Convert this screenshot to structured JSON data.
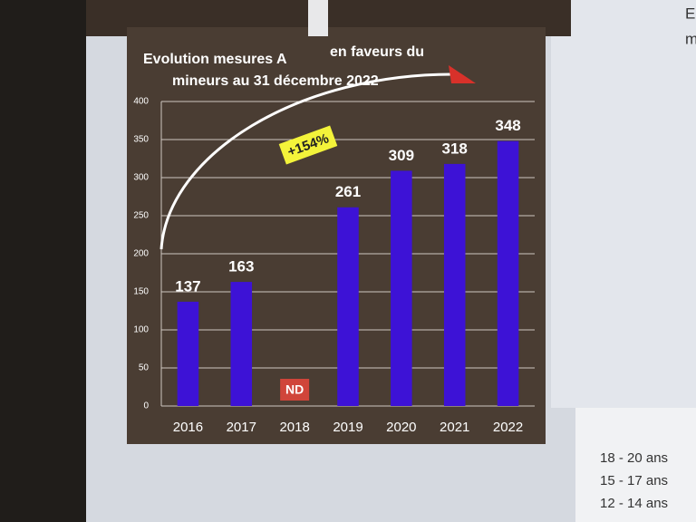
{
  "chart_data": {
    "type": "bar",
    "title": [
      "Evolution mesures A",
      "en faveurs du",
      "mineurs au 31 décembre 2022"
    ],
    "categories": [
      "2016",
      "2017",
      "2018",
      "2019",
      "2020",
      "2021",
      "2022"
    ],
    "values": [
      137,
      163,
      null,
      261,
      309,
      318,
      348
    ],
    "value_labels": [
      "137",
      "163",
      "ND",
      "261",
      "309",
      "318",
      "348"
    ],
    "color": "#3d12d6",
    "ylim": [
      0,
      400
    ],
    "yticks": [
      0,
      50,
      100,
      150,
      200,
      250,
      300,
      350,
      400
    ],
    "grid": true,
    "annotation": "+154%"
  },
  "side_texts": [
    "E",
    "m"
  ],
  "side_table": [
    "18 - 20 ans",
    "15 - 17 ans",
    "12 - 14 ans"
  ]
}
